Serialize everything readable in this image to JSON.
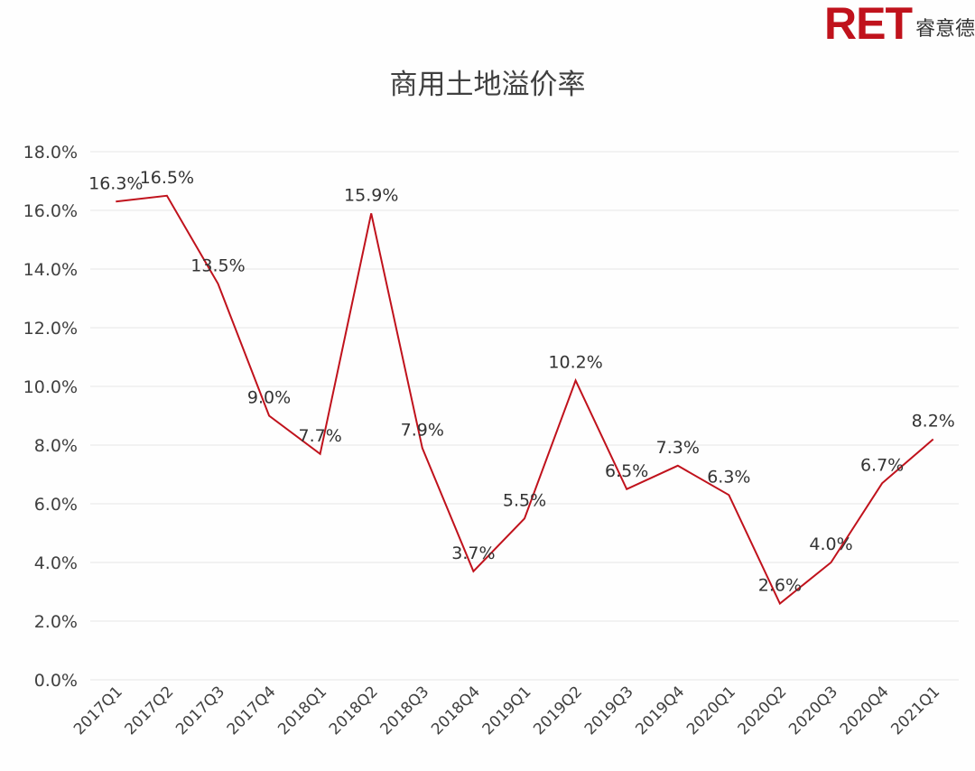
{
  "logo": {
    "brand": "RET",
    "sub": "睿意德",
    "brand_color": "#c0121c"
  },
  "chart_data": {
    "type": "line",
    "title": "商用土地溢价率",
    "xlabel": "",
    "ylabel": "",
    "categories": [
      "2017Q1",
      "2017Q2",
      "2017Q3",
      "2017Q4",
      "2018Q1",
      "2018Q2",
      "2018Q3",
      "2018Q4",
      "2019Q1",
      "2019Q2",
      "2019Q3",
      "2019Q4",
      "2020Q1",
      "2020Q2",
      "2020Q3",
      "2020Q4",
      "2021Q1"
    ],
    "series": [
      {
        "name": "商用土地溢价率",
        "values": [
          16.3,
          16.5,
          13.5,
          9.0,
          7.7,
          15.9,
          7.9,
          3.7,
          5.5,
          10.2,
          6.5,
          7.3,
          6.3,
          2.6,
          4.0,
          6.7,
          8.2
        ],
        "labels": [
          "16.3%",
          "16.5%",
          "13.5%",
          "9.0%",
          "7.7%",
          "15.9%",
          "7.9%",
          "3.7%",
          "5.5%",
          "10.2%",
          "6.5%",
          "7.3%",
          "6.3%",
          "2.6%",
          "4.0%",
          "6.7%",
          "8.2%"
        ],
        "color": "#c0121c"
      }
    ],
    "ylim": [
      0,
      18
    ],
    "yticks": [
      "0.0%",
      "2.0%",
      "4.0%",
      "6.0%",
      "8.0%",
      "10.0%",
      "12.0%",
      "14.0%",
      "16.0%",
      "18.0%"
    ],
    "grid": true,
    "grid_color": "#e6e6e6",
    "legend": "none"
  }
}
